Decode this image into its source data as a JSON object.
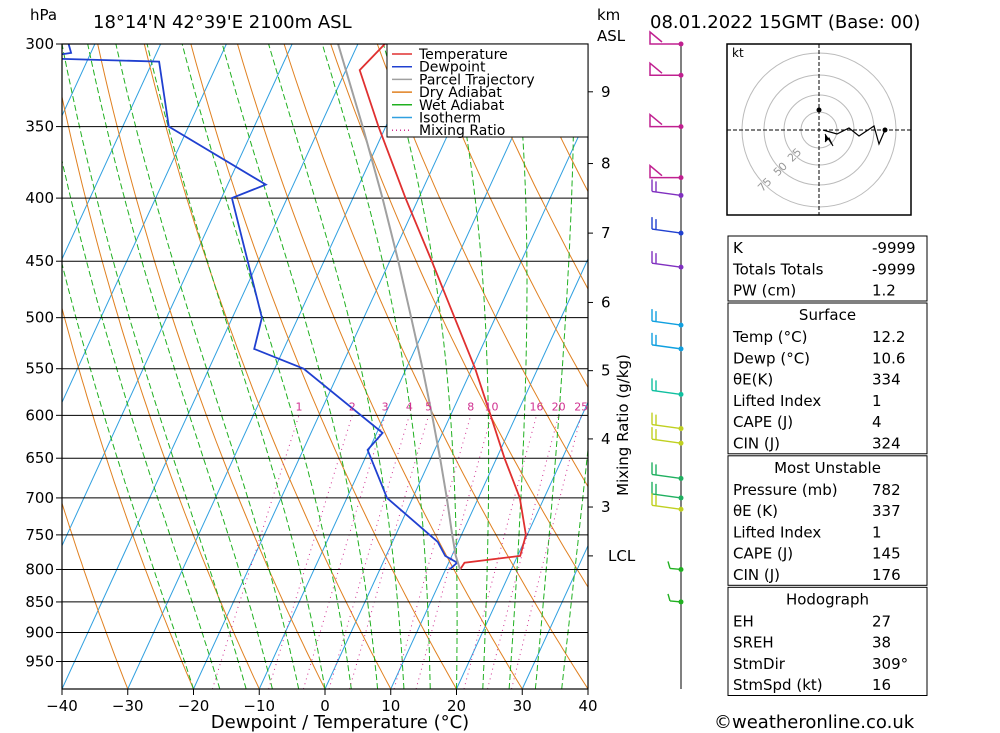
{
  "header": {
    "unit_left": "hPa",
    "location": "18°14'N  42°39'E  2100m  ASL",
    "unit_km": "km",
    "unit_asl": "ASL",
    "datetime": "08.01.2022  15GMT  (Base: 00)"
  },
  "footer": {
    "xlabel": "Dewpoint / Temperature (°C)",
    "copyright": "©weatheronline.co.uk"
  },
  "mixing_ratio_axis_label": "Mixing Ratio (g/kg)",
  "lcl_label": "LCL",
  "colors": {
    "temperature": "#e03030",
    "dewpoint": "#2040d0",
    "parcel": "#a0a0a0",
    "dry_adiabat": "#e08020",
    "wet_adiabat": "#20b020",
    "isotherm": "#30a0e0",
    "mixing_ratio": "#d03090"
  },
  "legend": [
    {
      "label": "Temperature",
      "color": "#e03030",
      "style": "solid"
    },
    {
      "label": "Dewpoint",
      "color": "#2040d0",
      "style": "solid"
    },
    {
      "label": "Parcel Trajectory",
      "color": "#a0a0a0",
      "style": "solid"
    },
    {
      "label": "Dry Adiabat",
      "color": "#e08020",
      "style": "solid"
    },
    {
      "label": "Wet Adiabat",
      "color": "#20b020",
      "style": "solid"
    },
    {
      "label": "Isotherm",
      "color": "#30a0e0",
      "style": "solid"
    },
    {
      "label": "Mixing Ratio",
      "color": "#d03090",
      "style": "dotted"
    }
  ],
  "chart_data": {
    "type": "line",
    "subtype": "skew-T log-P",
    "xlabel": "Dewpoint / Temperature (°C)",
    "ylabel": "hPa",
    "xlim": [
      -40,
      40
    ],
    "ylim": [
      1000,
      300
    ],
    "x_ticks": [
      -40,
      -30,
      -20,
      -10,
      0,
      10,
      20,
      30,
      40
    ],
    "pressure_levels": [
      300,
      350,
      400,
      450,
      500,
      550,
      600,
      650,
      700,
      750,
      800,
      850,
      900,
      950
    ],
    "km_ticks": [
      {
        "label": "9",
        "p": 328
      },
      {
        "label": "8",
        "p": 375
      },
      {
        "label": "7",
        "p": 427
      },
      {
        "label": "6",
        "p": 486
      },
      {
        "label": "5",
        "p": 552
      },
      {
        "label": "4",
        "p": 627
      },
      {
        "label": "3",
        "p": 712
      }
    ],
    "lcl_pressure": 780,
    "mixing_ratio_labels": [
      "1",
      "2",
      "3",
      "4",
      "5",
      "8",
      "10",
      "16",
      "20",
      "25"
    ],
    "series": [
      {
        "name": "Temperature",
        "color": "#e03030",
        "points": [
          [
            800,
            12.2
          ],
          [
            790,
            12.4
          ],
          [
            780,
            20.4
          ],
          [
            750,
            19.8
          ],
          [
            700,
            16.3
          ],
          [
            650,
            11.2
          ],
          [
            600,
            6.1
          ],
          [
            550,
            0.5
          ],
          [
            500,
            -6.2
          ],
          [
            450,
            -13.6
          ],
          [
            400,
            -22.0
          ],
          [
            350,
            -31.1
          ],
          [
            315,
            -37.9
          ],
          [
            300,
            -35.9
          ]
        ]
      },
      {
        "name": "Dewpoint",
        "color": "#2040d0",
        "points": [
          [
            800,
            10.6
          ],
          [
            790,
            11.3
          ],
          [
            780,
            9.0
          ],
          [
            760,
            6.9
          ],
          [
            700,
            -3.9
          ],
          [
            640,
            -10.2
          ],
          [
            620,
            -9.1
          ],
          [
            550,
            -25.6
          ],
          [
            530,
            -34.5
          ],
          [
            500,
            -35.5
          ],
          [
            400,
            -48.4
          ],
          [
            390,
            -44.2
          ],
          [
            350,
            -63.0
          ],
          [
            310,
            -69.0
          ],
          [
            308,
            -88.0
          ],
          [
            305,
            -83.0
          ],
          [
            300,
            -84.0
          ]
        ]
      },
      {
        "name": "Parcel Trajectory",
        "color": "#a0a0a0",
        "points": [
          [
            800,
            12.2
          ],
          [
            780,
            10.6
          ],
          [
            750,
            8.6
          ],
          [
            700,
            5.2
          ],
          [
            650,
            1.4
          ],
          [
            600,
            -2.8
          ],
          [
            550,
            -7.5
          ],
          [
            500,
            -12.8
          ],
          [
            450,
            -18.7
          ],
          [
            400,
            -25.5
          ],
          [
            350,
            -33.5
          ],
          [
            300,
            -43.0
          ]
        ]
      }
    ]
  },
  "hodograph": {
    "unit": "kt",
    "ring_labels": [
      "25",
      "50",
      "75"
    ]
  },
  "indices": {
    "top": [
      {
        "label": "K",
        "value": "-9999"
      },
      {
        "label": "Totals Totals",
        "value": "-9999"
      },
      {
        "label": "PW (cm)",
        "value": "1.2"
      }
    ],
    "surface": {
      "title": "Surface",
      "rows": [
        {
          "label": "Temp (°C)",
          "value": "12.2"
        },
        {
          "label": "Dewp (°C)",
          "value": "10.6"
        },
        {
          "label": "θE(K)",
          "value": "334"
        },
        {
          "label": "Lifted Index",
          "value": "1"
        },
        {
          "label": "CAPE (J)",
          "value": "4"
        },
        {
          "label": "CIN (J)",
          "value": "324"
        }
      ]
    },
    "most_unstable": {
      "title": "Most Unstable",
      "rows": [
        {
          "label": "Pressure (mb)",
          "value": "782"
        },
        {
          "label": "θE (K)",
          "value": "337"
        },
        {
          "label": "Lifted Index",
          "value": "1"
        },
        {
          "label": "CAPE (J)",
          "value": "145"
        },
        {
          "label": "CIN (J)",
          "value": "176"
        }
      ]
    },
    "hodograph": {
      "title": "Hodograph",
      "rows": [
        {
          "label": "EH",
          "value": "27"
        },
        {
          "label": "SREH",
          "value": "38"
        },
        {
          "label": "StmDir",
          "value": "309°"
        },
        {
          "label": "StmSpd (kt)",
          "value": "16"
        }
      ]
    }
  }
}
